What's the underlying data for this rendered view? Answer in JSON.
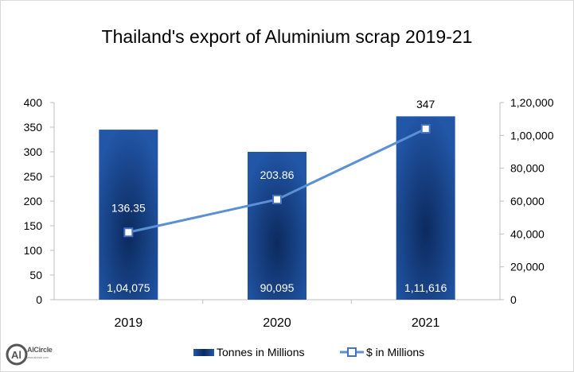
{
  "title": "Thailand's export of Aluminium scrap 2019-21",
  "logo": {
    "text": "AlCircle",
    "mark": "Al",
    "tagline": "www.alcircle.com"
  },
  "chart_data": {
    "type": "bar",
    "categories": [
      "2019",
      "2020",
      "2021"
    ],
    "series": [
      {
        "name": "Tonnes in Millions",
        "chart": "bar",
        "axis": "left",
        "values": [
          345,
          300,
          372
        ],
        "data_labels": [
          "1,04,075",
          "90,095",
          "1,11,616"
        ],
        "color": "#1f4e9b"
      },
      {
        "name": "$ in Millions",
        "chart": "line",
        "axis": "right",
        "values": [
          41000,
          61000,
          104000
        ],
        "data_labels": [
          "136.35",
          "203.86",
          "347"
        ],
        "color": "#5b8fd6"
      }
    ],
    "y_left": {
      "min": 0,
      "max": 400,
      "ticks": [
        "0",
        "50",
        "100",
        "150",
        "200",
        "250",
        "300",
        "350",
        "400"
      ]
    },
    "y_right": {
      "min": 0,
      "max": 120000,
      "ticks": [
        "0",
        "20,000",
        "40,000",
        "60,000",
        "80,000",
        "1,00,000",
        "1,20,000"
      ]
    },
    "grid": false,
    "legend_position": "bottom"
  }
}
